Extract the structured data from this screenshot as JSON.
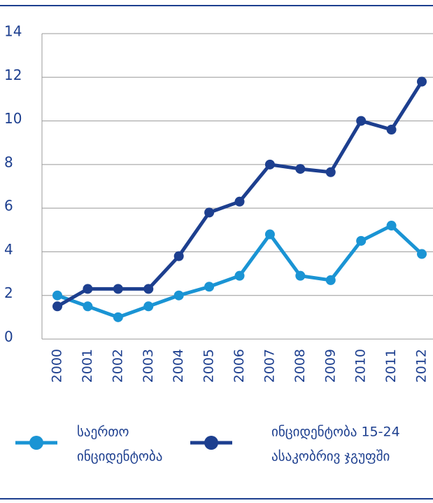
{
  "chart_data": {
    "type": "line",
    "x": [
      "2000",
      "2001",
      "2002",
      "2003",
      "2004",
      "2005",
      "2006",
      "2007",
      "2008",
      "2009",
      "2010",
      "2011",
      "2012"
    ],
    "series": [
      {
        "name": [
          "საერთო",
          "ინციდენტობა"
        ],
        "color": "#1a94d4",
        "values": [
          2.0,
          1.5,
          1.0,
          1.5,
          2.0,
          2.4,
          2.9,
          4.8,
          2.9,
          2.7,
          4.5,
          5.2,
          3.9
        ]
      },
      {
        "name": [
          "ინციდენტობა 15-24",
          "ასაკობრივ ჯგუფში"
        ],
        "color": "#1d3f8f",
        "values": [
          1.5,
          2.3,
          2.3,
          2.3,
          3.8,
          5.8,
          6.3,
          8.0,
          7.8,
          7.65,
          10.0,
          9.6,
          11.8
        ]
      }
    ],
    "ylim": [
      0,
      14
    ],
    "yticks": [
      0,
      2,
      4,
      6,
      8,
      10,
      12,
      14
    ],
    "grid": true
  }
}
